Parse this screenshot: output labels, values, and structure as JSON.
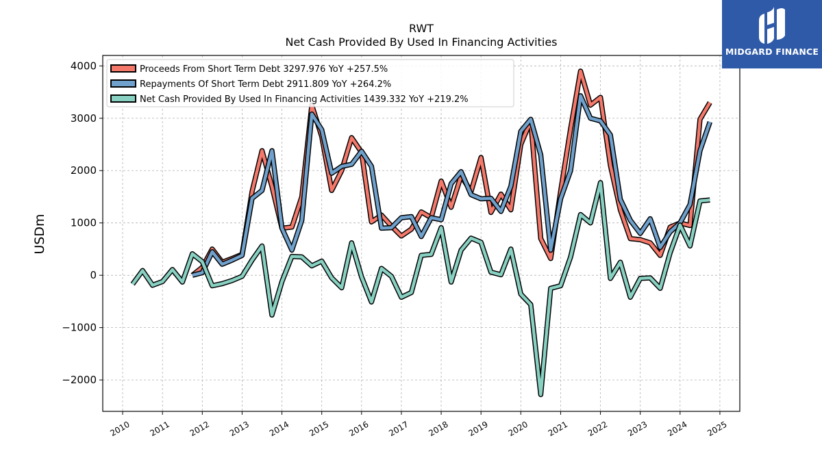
{
  "chart_data": {
    "type": "line",
    "title": "RWT",
    "subtitle": "Net Cash Provided By Used In Financing Activities",
    "ylabel": "USDm",
    "xlabel": "",
    "xlim": [
      2009.5,
      2025.5
    ],
    "ylim": [
      -2600,
      4200
    ],
    "x_ticks": [
      2010,
      2011,
      2012,
      2013,
      2014,
      2015,
      2016,
      2017,
      2018,
      2019,
      2020,
      2021,
      2022,
      2023,
      2024,
      2025
    ],
    "x_tick_labels": [
      "2010",
      "2011",
      "2012",
      "2013",
      "2014",
      "2015",
      "2016",
      "2017",
      "2018",
      "2019",
      "2020",
      "2021",
      "2022",
      "2023",
      "2024",
      "2025"
    ],
    "y_ticks": [
      -2000,
      -1000,
      0,
      1000,
      2000,
      3000,
      4000
    ],
    "y_tick_labels": [
      "−2000",
      "−1000",
      "0",
      "1000",
      "2000",
      "3000",
      "4000"
    ],
    "grid": true,
    "legend_position": "top-left",
    "x": [
      2010.25,
      2010.5,
      2010.75,
      2011.0,
      2011.25,
      2011.5,
      2011.75,
      2012.0,
      2012.25,
      2012.5,
      2012.75,
      2013.0,
      2013.25,
      2013.5,
      2013.75,
      2014.0,
      2014.25,
      2014.5,
      2014.75,
      2015.0,
      2015.25,
      2015.5,
      2015.75,
      2016.0,
      2016.25,
      2016.5,
      2016.75,
      2017.0,
      2017.25,
      2017.5,
      2017.75,
      2018.0,
      2018.25,
      2018.5,
      2018.75,
      2019.0,
      2019.25,
      2019.5,
      2019.75,
      2020.0,
      2020.25,
      2020.5,
      2020.75,
      2021.0,
      2021.25,
      2021.5,
      2021.75,
      2022.0,
      2022.25,
      2022.5,
      2022.75,
      2023.0,
      2023.25,
      2023.5,
      2023.75,
      2024.0,
      2024.25,
      2024.5,
      2024.75
    ],
    "series": [
      {
        "name": "Proceeds From Short Term Debt",
        "legend_label": "Proceeds From Short Term Debt  3297.976 YoY +257.5%",
        "color": "#f4796b",
        "values": [
          null,
          null,
          null,
          null,
          null,
          null,
          0,
          150,
          500,
          250,
          320,
          400,
          1600,
          2380,
          1700,
          900,
          920,
          1500,
          3250,
          2650,
          1620,
          2000,
          2630,
          2350,
          1020,
          1150,
          940,
          750,
          880,
          1210,
          1100,
          1800,
          1300,
          1900,
          1600,
          2250,
          1200,
          1550,
          1250,
          2500,
          2950,
          700,
          320,
          1600,
          2800,
          3900,
          3250,
          3400,
          2100,
          1250,
          700,
          680,
          620,
          380,
          920,
          1000,
          950,
          2980,
          3300
        ]
      },
      {
        "name": "Repayments Of Short Term Debt",
        "legend_label": "Repayments Of Short Term Debt  2911.809 YoY +264.2%",
        "color": "#6fa1cc",
        "values": [
          null,
          null,
          null,
          null,
          null,
          null,
          0,
          50,
          450,
          210,
          290,
          380,
          1470,
          1620,
          2380,
          900,
          480,
          1050,
          3080,
          2780,
          1950,
          2080,
          2120,
          2370,
          2080,
          900,
          910,
          1100,
          1120,
          740,
          1100,
          1060,
          1750,
          1980,
          1540,
          1460,
          1470,
          1220,
          1700,
          2750,
          2980,
          2300,
          480,
          1460,
          2000,
          3430,
          3000,
          2950,
          2680,
          1450,
          1050,
          800,
          1080,
          530,
          830,
          1000,
          1350,
          2380,
          2930
        ]
      },
      {
        "name": "Net Cash Provided By Used In Financing Activities",
        "legend_label": "Net Cash Provided By Used In Financing Activities  1439.332 YoY +219.2%",
        "color": "#88d1c2",
        "values": [
          -170,
          90,
          -190,
          -120,
          110,
          -130,
          410,
          260,
          -200,
          -160,
          -100,
          -20,
          290,
          560,
          -760,
          -120,
          360,
          350,
          180,
          270,
          -50,
          -240,
          620,
          -30,
          -510,
          130,
          -20,
          -420,
          -330,
          380,
          400,
          910,
          -130,
          480,
          710,
          630,
          60,
          10,
          500,
          -360,
          -560,
          -2280,
          -250,
          -200,
          350,
          1160,
          1000,
          1770,
          -60,
          250,
          -420,
          -60,
          -50,
          -250,
          430,
          960,
          560,
          1420,
          1440
        ]
      }
    ]
  },
  "logo": {
    "text": "MIDGARD FINANCE",
    "color": "#2e5aa8"
  }
}
